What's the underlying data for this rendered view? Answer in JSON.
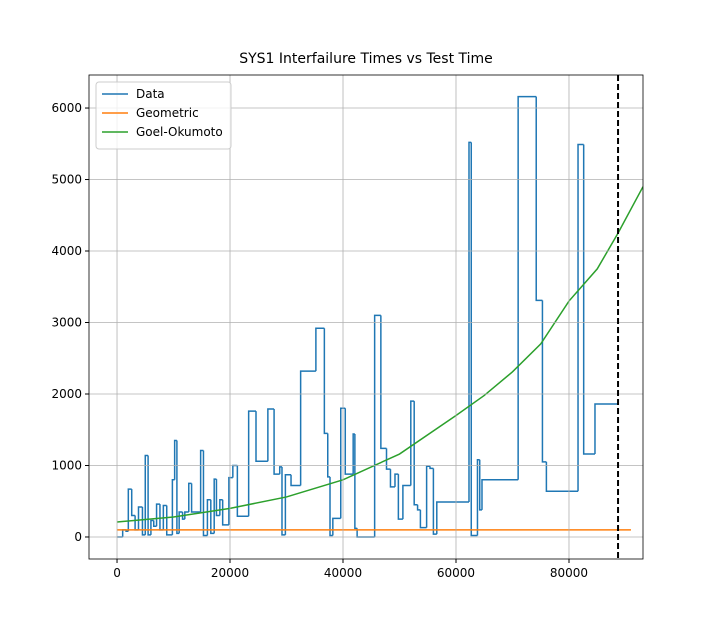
{
  "chart_data": {
    "type": "line",
    "step": "post",
    "title": "SYS1 Interfailure Times vs Test Time",
    "xlim": [
      -4960,
      93100
    ],
    "ylim": [
      -308,
      6462
    ],
    "xticks": [
      0,
      20000,
      40000,
      60000,
      80000
    ],
    "yticks": [
      0,
      1000,
      2000,
      3000,
      4000,
      5000,
      6000
    ],
    "grid": true,
    "legend": "upper left",
    "vline": 88682,
    "series": [
      {
        "name": "Data",
        "color": "#1f77b4",
        "step": true,
        "x": [
          0,
          1000,
          1600,
          2000,
          2600,
          3200,
          3800,
          4500,
          5000,
          5500,
          6000,
          6500,
          7000,
          7600,
          8200,
          8800,
          9800,
          10200,
          10600,
          11000,
          11600,
          12000,
          12700,
          13200,
          14800,
          15300,
          16000,
          16600,
          17200,
          17600,
          18200,
          18700,
          19800,
          20500,
          21300,
          23300,
          24600,
          26700,
          27800,
          28800,
          29200,
          29800,
          30800,
          32500,
          35200,
          36700,
          37300,
          37700,
          38200,
          39600,
          40400,
          41800,
          42100,
          42500,
          45600,
          46700,
          47700,
          48400,
          49200,
          49800,
          50600,
          52000,
          52600,
          53200,
          53700,
          54800,
          55400,
          56000,
          56600,
          62300,
          62700,
          63800,
          64200,
          64600,
          71000,
          74200,
          75300,
          76000,
          81600,
          82600,
          84600,
          88682
        ],
        "values": [
          0,
          100,
          80,
          670,
          300,
          100,
          420,
          30,
          1140,
          30,
          230,
          150,
          460,
          100,
          440,
          30,
          800,
          1350,
          50,
          350,
          250,
          350,
          750,
          350,
          1210,
          20,
          520,
          50,
          810,
          300,
          520,
          170,
          830,
          1000,
          290,
          1760,
          1060,
          1790,
          880,
          980,
          30,
          870,
          720,
          2320,
          2920,
          1450,
          840,
          20,
          260,
          1800,
          880,
          1440,
          120,
          0,
          3100,
          1240,
          950,
          700,
          880,
          250,
          720,
          1900,
          450,
          380,
          130,
          990,
          960,
          40,
          490,
          5520,
          20,
          1080,
          380,
          800,
          6160,
          3310,
          1050,
          640,
          5490,
          1160,
          1860,
          1860
        ]
      },
      {
        "name": "Geometric",
        "color": "#ff7f0e",
        "step": false,
        "x": [
          0,
          90970
        ],
        "values": [
          100,
          100
        ]
      },
      {
        "name": "Goel-Okumoto",
        "color": "#2ca02c",
        "step": false,
        "x": [
          0,
          10000,
          20000,
          30000,
          40000,
          50000,
          60000,
          65000,
          70000,
          75000,
          80000,
          85000,
          88682,
          93100
        ],
        "values": [
          210,
          280,
          400,
          560,
          800,
          1160,
          1700,
          1980,
          2310,
          2700,
          3300,
          3750,
          4250,
          4900
        ]
      }
    ]
  }
}
